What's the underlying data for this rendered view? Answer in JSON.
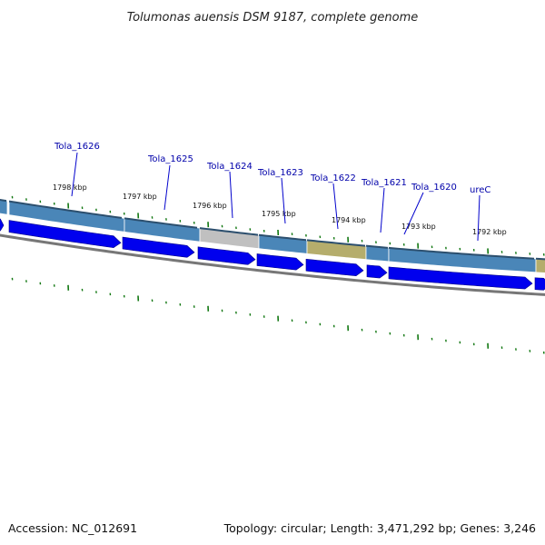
{
  "title": "Tolumonas auensis DSM 9187, complete genome",
  "footer": {
    "accession": "Accession: NC_012691",
    "summary": "Topology: circular; Length: 3,471,292 bp; Genes: 3,246"
  },
  "colors": {
    "gene_label": "#0000aa",
    "gene_label_line": "#0000cc",
    "tick": "#117711",
    "cds_arrow": "#0000ee",
    "backbone": "#777777",
    "feature_blue": "#4a86b8",
    "feature_grey": "#c0c0c0",
    "feature_olive": "#b5ad6c"
  },
  "position_ticks": [
    {
      "label": "1798 kbp"
    },
    {
      "label": "1797 kbp"
    },
    {
      "label": "1796 kbp"
    },
    {
      "label": "1795 kbp"
    },
    {
      "label": "1794 kbp"
    },
    {
      "label": "1793 kbp"
    },
    {
      "label": "1792 kbp"
    }
  ],
  "gene_labels": [
    {
      "label": "Tola_1626"
    },
    {
      "label": "Tola_1625"
    },
    {
      "label": "Tola_1624"
    },
    {
      "label": "Tola_1623"
    },
    {
      "label": "Tola_1622"
    },
    {
      "label": "Tola_1621"
    },
    {
      "label": "Tola_1620"
    },
    {
      "label": "ureC"
    }
  ]
}
